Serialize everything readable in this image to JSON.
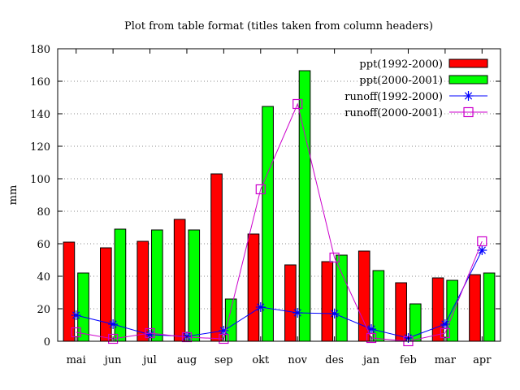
{
  "chart_data": {
    "type": "bar",
    "title": "Plot from table format (titles taken from column headers)",
    "xlabel": "",
    "ylabel": "mm",
    "ylim": [
      0,
      180
    ],
    "yticks": [
      0,
      20,
      40,
      60,
      80,
      100,
      120,
      140,
      160,
      180
    ],
    "categories": [
      "mai",
      "jun",
      "jul",
      "aug",
      "sep",
      "okt",
      "nov",
      "des",
      "jan",
      "feb",
      "mar",
      "apr"
    ],
    "grid": "horizontal-dotted",
    "legend_position": "top-right",
    "series": [
      {
        "name": "ppt(1992-2000)",
        "kind": "bar",
        "color": "#ff0000",
        "values": [
          61,
          57.5,
          61.5,
          75,
          103,
          66,
          47,
          49,
          55.5,
          36,
          39,
          41
        ]
      },
      {
        "name": "ppt(2000-2001)",
        "kind": "bar",
        "color": "#00ff00",
        "values": [
          42,
          69,
          68.5,
          68.5,
          26,
          144.5,
          166.5,
          53,
          43.5,
          23,
          37.5,
          42
        ]
      },
      {
        "name": "runoff(1992-2000)",
        "kind": "line",
        "marker": "asterisk",
        "color": "#0000ff",
        "values": [
          16,
          10.5,
          4,
          3,
          6.5,
          21,
          17.5,
          17,
          7.5,
          2,
          10.5,
          56
        ]
      },
      {
        "name": "runoff(2000-2001)",
        "kind": "line",
        "marker": "square",
        "color": "#cc00cc",
        "values": [
          5.5,
          1.5,
          5,
          2.5,
          1.5,
          93.5,
          146,
          51.5,
          2,
          0,
          5,
          61.5
        ]
      }
    ]
  }
}
